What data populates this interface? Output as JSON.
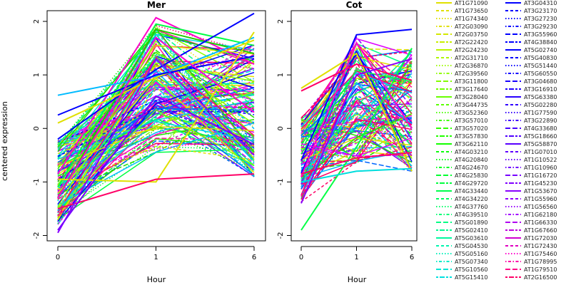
{
  "chart_data": [
    {
      "type": "line",
      "title": "Mer",
      "xlabel": "Hour",
      "ylabel": "centered expression",
      "x": [
        0,
        1,
        6
      ],
      "x_ticks": [
        "0",
        "1",
        "6"
      ],
      "y_ticks": [
        "-2",
        "-1",
        "0",
        "1",
        "2"
      ],
      "ylim": [
        -2.1,
        2.2
      ],
      "grid": false,
      "highlight": [
        {
          "color": "#ff00cc",
          "values": [
            -0.85,
            2.07,
            1.2
          ]
        },
        {
          "color": "#00ff44",
          "values": [
            -1.1,
            1.95,
            1.55
          ]
        },
        {
          "color": "#22cc00",
          "values": [
            -1.3,
            1.85,
            1.4
          ]
        },
        {
          "color": "#0000ff",
          "values": [
            -0.2,
            1.1,
            2.15
          ]
        },
        {
          "color": "#00bbff",
          "values": [
            0.62,
            0.98,
            1.7
          ]
        },
        {
          "color": "#e0e000",
          "values": [
            0.1,
            0.95,
            1.65
          ]
        },
        {
          "color": "#0000ff",
          "values": [
            0.25,
            1.0,
            1.35
          ]
        },
        {
          "color": "#e0e000",
          "values": [
            -0.95,
            -1.0,
            1.8
          ]
        },
        {
          "color": "#ff0066",
          "values": [
            -1.5,
            -0.95,
            -0.85
          ]
        },
        {
          "color": "#ff00cc",
          "values": [
            -1.3,
            1.7,
            0.3
          ]
        },
        {
          "color": "#8800ff",
          "values": [
            -1.95,
            1.3,
            -0.5
          ]
        },
        {
          "color": "#7700ff",
          "values": [
            -1.9,
            0.6,
            -0.3
          ]
        }
      ]
    },
    {
      "type": "line",
      "title": "Cot",
      "xlabel": "Hour",
      "x": [
        0,
        1,
        6
      ],
      "x_ticks": [
        "0",
        "1",
        "6"
      ],
      "y_ticks": [
        "-2",
        "-1",
        "0",
        "1",
        "2"
      ],
      "ylim": [
        -2.1,
        2.2
      ],
      "grid": false,
      "highlight": [
        {
          "color": "#0000ff",
          "values": [
            -0.6,
            1.75,
            1.85
          ]
        },
        {
          "color": "#00ff44",
          "values": [
            -1.9,
            -0.35,
            1.5
          ]
        },
        {
          "color": "#e0e000",
          "values": [
            0.75,
            1.4,
            -0.8
          ]
        },
        {
          "color": "#00dddd",
          "values": [
            -1.0,
            -0.8,
            -0.75
          ]
        },
        {
          "color": "#ff0066",
          "values": [
            0.7,
            1.2,
            0.9
          ]
        },
        {
          "color": "#ff00cc",
          "values": [
            -0.9,
            1.6,
            0.0
          ]
        },
        {
          "color": "#ff0066",
          "values": [
            -0.85,
            -0.55,
            -0.45
          ]
        },
        {
          "color": "#8800ff",
          "values": [
            -1.4,
            1.0,
            1.3
          ]
        }
      ]
    }
  ],
  "legend": {
    "placement": "right",
    "columns": [
      [
        {
          "label": "AT1G71090",
          "color": "#e0e000",
          "dash": "solid"
        },
        {
          "label": "AT1G73650",
          "color": "#e0e000",
          "dash": "dashed"
        },
        {
          "label": "AT1G74340",
          "color": "#e0e000",
          "dash": "dotted"
        },
        {
          "label": "AT2G03090",
          "color": "#e0e000",
          "dash": "dotdash"
        },
        {
          "label": "AT2G03750",
          "color": "#d4e800",
          "dash": "longdash"
        },
        {
          "label": "AT2G22420",
          "color": "#c8f000",
          "dash": "twodash"
        },
        {
          "label": "AT2G24230",
          "color": "#bcf500",
          "dash": "solid"
        },
        {
          "label": "AT2G31710",
          "color": "#aef800",
          "dash": "dashed"
        },
        {
          "label": "AT2G36870",
          "color": "#a0fb00",
          "dash": "dotted"
        },
        {
          "label": "AT2G39560",
          "color": "#92fd00",
          "dash": "dotdash"
        },
        {
          "label": "AT3G11800",
          "color": "#84fe00",
          "dash": "longdash"
        },
        {
          "label": "AT3G17640",
          "color": "#76ff00",
          "dash": "twodash"
        },
        {
          "label": "AT3G28040",
          "color": "#68ff00",
          "dash": "solid"
        },
        {
          "label": "AT3G44735",
          "color": "#5aff00",
          "dash": "dashed"
        },
        {
          "label": "AT3G52360",
          "color": "#4cff00",
          "dash": "dotted"
        },
        {
          "label": "AT3G57010",
          "color": "#3eff00",
          "dash": "dotdash"
        },
        {
          "label": "AT3G57020",
          "color": "#30ff00",
          "dash": "longdash"
        },
        {
          "label": "AT3G57830",
          "color": "#22ff00",
          "dash": "twodash"
        },
        {
          "label": "AT3G62110",
          "color": "#14ff00",
          "dash": "solid"
        },
        {
          "label": "AT4G03210",
          "color": "#0aff0a",
          "dash": "dashed"
        },
        {
          "label": "AT4G20840",
          "color": "#00ff14",
          "dash": "dotted"
        },
        {
          "label": "AT4G24670",
          "color": "#00ff22",
          "dash": "dotdash"
        },
        {
          "label": "AT4G25830",
          "color": "#00ff30",
          "dash": "longdash"
        },
        {
          "label": "AT4G29720",
          "color": "#00ff3e",
          "dash": "twodash"
        },
        {
          "label": "AT4G33440",
          "color": "#00ff4c",
          "dash": "solid"
        },
        {
          "label": "AT4G34220",
          "color": "#00ff5a",
          "dash": "dashed"
        },
        {
          "label": "AT4G37760",
          "color": "#00ff68",
          "dash": "dotted"
        },
        {
          "label": "AT4G39510",
          "color": "#00fe76",
          "dash": "dotdash"
        },
        {
          "label": "AT5G01890",
          "color": "#00fd84",
          "dash": "longdash"
        },
        {
          "label": "AT5G02410",
          "color": "#00fb92",
          "dash": "twodash"
        },
        {
          "label": "AT5G03610",
          "color": "#00f8a0",
          "dash": "solid"
        },
        {
          "label": "AT5G04530",
          "color": "#00f5ae",
          "dash": "dashed"
        },
        {
          "label": "AT5G05160",
          "color": "#00f0bc",
          "dash": "dotted"
        },
        {
          "label": "AT5G07340",
          "color": "#00ecc8",
          "dash": "dotdash"
        },
        {
          "label": "AT5G10560",
          "color": "#00e6d4",
          "dash": "longdash"
        },
        {
          "label": "AT5G15410",
          "color": "#00e0e0",
          "dash": "twodash"
        }
      ],
      [
        {
          "label": "AT3G04310",
          "color": "#0000ff",
          "dash": "solid"
        },
        {
          "label": "AT3G23170",
          "color": "#0000ff",
          "dash": "dashed"
        },
        {
          "label": "AT3G27230",
          "color": "#0000ff",
          "dash": "dotted"
        },
        {
          "label": "AT3G29230",
          "color": "#0000ff",
          "dash": "dotdash"
        },
        {
          "label": "AT3G55960",
          "color": "#0000ff",
          "dash": "longdash"
        },
        {
          "label": "AT4G38840",
          "color": "#0000ff",
          "dash": "twodash"
        },
        {
          "label": "AT5G02740",
          "color": "#0000ff",
          "dash": "solid"
        },
        {
          "label": "AT5G40830",
          "color": "#0000ff",
          "dash": "dashed"
        },
        {
          "label": "AT5G51440",
          "color": "#0800ff",
          "dash": "dotted"
        },
        {
          "label": "AT5G60550",
          "color": "#1000ff",
          "dash": "dotdash"
        },
        {
          "label": "AT3G04680",
          "color": "#1800ff",
          "dash": "longdash"
        },
        {
          "label": "AT3G16910",
          "color": "#2000ff",
          "dash": "twodash"
        },
        {
          "label": "AT5G63380",
          "color": "#2800ff",
          "dash": "solid"
        },
        {
          "label": "AT5G02280",
          "color": "#3000ff",
          "dash": "dashed"
        },
        {
          "label": "AT1G77590",
          "color": "#3800ff",
          "dash": "dotted"
        },
        {
          "label": "AT3G22890",
          "color": "#4000ff",
          "dash": "dotdash"
        },
        {
          "label": "AT4G33680",
          "color": "#4800ff",
          "dash": "longdash"
        },
        {
          "label": "AT5G18660",
          "color": "#5000ff",
          "dash": "twodash"
        },
        {
          "label": "AT5G58870",
          "color": "#5800ff",
          "dash": "solid"
        },
        {
          "label": "AT1G07010",
          "color": "#6000ff",
          "dash": "dashed"
        },
        {
          "label": "AT1G10522",
          "color": "#6800ff",
          "dash": "dotted"
        },
        {
          "label": "AT1G10960",
          "color": "#7000ff",
          "dash": "dotdash"
        },
        {
          "label": "AT1G16720",
          "color": "#7800ff",
          "dash": "longdash"
        },
        {
          "label": "AT1G45230",
          "color": "#8000ff",
          "dash": "twodash"
        },
        {
          "label": "AT1G53670",
          "color": "#8800ff",
          "dash": "solid"
        },
        {
          "label": "AT1G55960",
          "color": "#9000ff",
          "dash": "dashed"
        },
        {
          "label": "AT1G56560",
          "color": "#9800ff",
          "dash": "dotted"
        },
        {
          "label": "AT1G62180",
          "color": "#a000ff",
          "dash": "dotdash"
        },
        {
          "label": "AT1G66330",
          "color": "#b000f0",
          "dash": "longdash"
        },
        {
          "label": "AT1G67660",
          "color": "#c000e0",
          "dash": "twodash"
        },
        {
          "label": "AT1G72030",
          "color": "#d000d0",
          "dash": "solid"
        },
        {
          "label": "AT1G72430",
          "color": "#e000c0",
          "dash": "dashed"
        },
        {
          "label": "AT1G75460",
          "color": "#ff00cc",
          "dash": "dotted"
        },
        {
          "label": "AT1G78995",
          "color": "#ff00aa",
          "dash": "dotdash"
        },
        {
          "label": "AT1G79510",
          "color": "#ff0088",
          "dash": "longdash"
        },
        {
          "label": "AT2G16500",
          "color": "#ff0066",
          "dash": "twodash"
        }
      ]
    ]
  }
}
